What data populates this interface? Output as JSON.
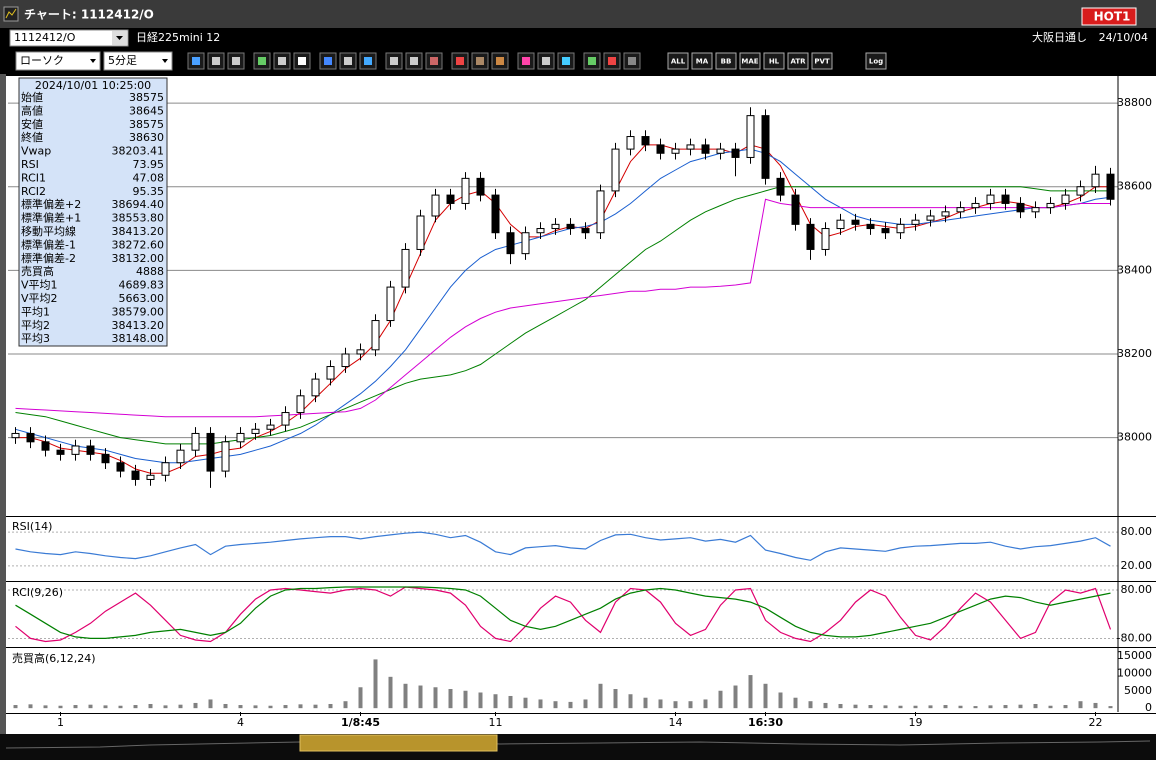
{
  "window": {
    "title": "チャート: 1112412/O",
    "hot": "HOT1"
  },
  "header": {
    "symbol": "1112412/O",
    "name": "日経225mini 12",
    "market": "大阪日通し",
    "date": "24/10/04"
  },
  "toolbar": {
    "chart_type": "ローソク",
    "interval": "5分足",
    "buttons": [
      "ALL",
      "MA",
      "BB",
      "MAE",
      "HL",
      "ATR",
      "PVT",
      "Log"
    ]
  },
  "info_panel": {
    "datetime": "2024/10/01  10:25:00",
    "rows": [
      {
        "label": "始値",
        "value": "38575",
        "color": "#000000"
      },
      {
        "label": "高値",
        "value": "38645",
        "color": "#000000"
      },
      {
        "label": "安値",
        "value": "38575",
        "color": "#000000"
      },
      {
        "label": "終値",
        "value": "38630",
        "color": "#000000"
      },
      {
        "label": "Vwap",
        "value": "38203.41",
        "color": "#d400d4"
      },
      {
        "label": "RSI",
        "value": "73.95",
        "color": "#5a7fd0"
      },
      {
        "label": "RCI1",
        "value": "47.08",
        "color": "#d4006a"
      },
      {
        "label": "RCI2",
        "value": "95.35",
        "color": "#008000"
      },
      {
        "label": "標準偏差+2",
        "value": "38694.40",
        "color": "#909090"
      },
      {
        "label": "標準偏差+1",
        "value": "38553.80",
        "color": "#909090"
      },
      {
        "label": "移動平均線",
        "value": "38413.20",
        "color": "#0020a0"
      },
      {
        "label": "標準偏差-1",
        "value": "38272.60",
        "color": "#909090"
      },
      {
        "label": "標準偏差-2",
        "value": "38132.00",
        "color": "#909090"
      },
      {
        "label": "売買高",
        "value": "4888",
        "color": "#000000"
      },
      {
        "label": "V平均1",
        "value": "4689.83",
        "color": "#d00000"
      },
      {
        "label": "V平均2",
        "value": "5663.00",
        "color": "#7050c0"
      },
      {
        "label": "平均1",
        "value": "38579.00",
        "color": "#d00000"
      },
      {
        "label": "平均2",
        "value": "38413.20",
        "color": "#0050d0"
      },
      {
        "label": "平均3",
        "value": "38148.00",
        "color": "#006000"
      }
    ]
  },
  "chart_data": [
    {
      "type": "candlestick",
      "categories": [
        null,
        null,
        null,
        "1",
        null,
        null,
        null,
        null,
        null,
        null,
        null,
        null,
        null,
        null,
        null,
        "4",
        null,
        null,
        null,
        null,
        null,
        null,
        null,
        "1/8:45",
        null,
        null,
        null,
        null,
        null,
        null,
        null,
        null,
        "11",
        null,
        null,
        null,
        null,
        null,
        null,
        null,
        null,
        null,
        null,
        null,
        "14",
        null,
        null,
        null,
        null,
        null,
        "16:30",
        null,
        null,
        null,
        null,
        null,
        null,
        null,
        null,
        null,
        "19",
        null,
        null,
        null,
        null,
        null,
        null,
        null,
        null,
        null,
        null,
        null,
        "22",
        null
      ],
      "open": [
        38000,
        38010,
        37990,
        37970,
        37960,
        37980,
        37960,
        37940,
        37920,
        37900,
        37910,
        37940,
        37970,
        38010,
        37920,
        37990,
        38010,
        38020,
        38030,
        38060,
        38100,
        38140,
        38170,
        38200,
        38210,
        38280,
        38360,
        38450,
        38530,
        38580,
        38560,
        38620,
        38580,
        38490,
        38440,
        38490,
        38500,
        38510,
        38500,
        38490,
        38590,
        38690,
        38720,
        38700,
        38680,
        38690,
        38700,
        38680,
        38690,
        38670,
        38770,
        38620,
        38580,
        38510,
        38450,
        38500,
        38520,
        38510,
        38500,
        38490,
        38510,
        38520,
        38530,
        38540,
        38550,
        38560,
        38580,
        38560,
        38540,
        38550,
        38560,
        38580,
        38600,
        38630
      ],
      "high": [
        38025,
        38025,
        38005,
        37985,
        37995,
        37995,
        37975,
        37955,
        37935,
        37925,
        37955,
        37985,
        38025,
        38025,
        38005,
        38025,
        38035,
        38045,
        38075,
        38115,
        38155,
        38185,
        38215,
        38225,
        38295,
        38375,
        38465,
        38545,
        38595,
        38595,
        38635,
        38635,
        38595,
        38505,
        38505,
        38515,
        38525,
        38525,
        38515,
        38605,
        38705,
        38735,
        38735,
        38715,
        38705,
        38715,
        38715,
        38705,
        38705,
        38790,
        38785,
        38635,
        38595,
        38525,
        38515,
        38535,
        38535,
        38525,
        38515,
        38525,
        38535,
        38545,
        38555,
        38565,
        38575,
        38595,
        38595,
        38575,
        38565,
        38575,
        38595,
        38615,
        38650,
        38645
      ],
      "low": [
        37985,
        37975,
        37955,
        37945,
        37945,
        37945,
        37925,
        37905,
        37885,
        37885,
        37895,
        37925,
        37955,
        37880,
        37905,
        37975,
        37995,
        38005,
        38015,
        38045,
        38085,
        38125,
        38155,
        38185,
        38195,
        38265,
        38345,
        38435,
        38515,
        38545,
        38545,
        38565,
        38475,
        38415,
        38425,
        38475,
        38485,
        38485,
        38475,
        38475,
        38575,
        38675,
        38685,
        38665,
        38665,
        38675,
        38665,
        38665,
        38625,
        38655,
        38605,
        38565,
        38495,
        38425,
        38435,
        38485,
        38495,
        38485,
        38475,
        38475,
        38495,
        38505,
        38515,
        38525,
        38535,
        38545,
        38545,
        38525,
        38525,
        38535,
        38545,
        38565,
        38585,
        38555
      ],
      "close": [
        38010,
        37990,
        37970,
        37960,
        37980,
        37960,
        37940,
        37920,
        37900,
        37910,
        37940,
        37970,
        38010,
        37920,
        37990,
        38010,
        38020,
        38030,
        38060,
        38100,
        38140,
        38170,
        38200,
        38210,
        38280,
        38360,
        38450,
        38530,
        38580,
        38560,
        38620,
        38580,
        38490,
        38440,
        38490,
        38500,
        38510,
        38500,
        38490,
        38590,
        38690,
        38720,
        38700,
        38680,
        38690,
        38700,
        38680,
        38690,
        38670,
        38770,
        38620,
        38580,
        38510,
        38450,
        38500,
        38520,
        38510,
        38500,
        38490,
        38510,
        38520,
        38530,
        38540,
        38550,
        38560,
        38580,
        38560,
        38540,
        38550,
        38560,
        38580,
        38600,
        38630,
        38570
      ],
      "lines": [
        {
          "color": "#d40000",
          "values": [
            38000,
            38000,
            37990,
            37975,
            37970,
            37965,
            37960,
            37945,
            37925,
            37915,
            37915,
            37930,
            37955,
            37960,
            37970,
            37975,
            38000,
            38015,
            38035,
            38060,
            38095,
            38130,
            38165,
            38190,
            38225,
            38280,
            38360,
            38440,
            38520,
            38560,
            38580,
            38590,
            38560,
            38510,
            38480,
            38480,
            38495,
            38505,
            38500,
            38520,
            38590,
            38660,
            38700,
            38700,
            38690,
            38690,
            38690,
            38690,
            38680,
            38700,
            38690,
            38650,
            38580,
            38510,
            38480,
            38490,
            38505,
            38510,
            38505,
            38500,
            38505,
            38515,
            38525,
            38540,
            38550,
            38560,
            38565,
            38560,
            38550,
            38550,
            38560,
            38575,
            38600,
            38600
          ]
        },
        {
          "color": "#1a5fd0",
          "values": [
            38020,
            38010,
            38000,
            37990,
            37980,
            37975,
            37970,
            37960,
            37950,
            37945,
            37940,
            37940,
            37945,
            37950,
            37955,
            37960,
            37970,
            37980,
            37995,
            38010,
            38030,
            38055,
            38080,
            38105,
            38135,
            38170,
            38210,
            38260,
            38310,
            38360,
            38400,
            38430,
            38450,
            38460,
            38470,
            38480,
            38490,
            38500,
            38505,
            38515,
            38535,
            38560,
            38590,
            38620,
            38640,
            38660,
            38670,
            38680,
            38685,
            38690,
            38680,
            38660,
            38630,
            38600,
            38570,
            38550,
            38530,
            38520,
            38515,
            38510,
            38510,
            38515,
            38520,
            38525,
            38530,
            38535,
            38540,
            38545,
            38550,
            38550,
            38555,
            38560,
            38570,
            38575
          ]
        },
        {
          "color": "#008000",
          "values": [
            38060,
            38055,
            38050,
            38040,
            38030,
            38020,
            38010,
            38000,
            37995,
            37990,
            37985,
            37985,
            37985,
            37985,
            37990,
            37995,
            38000,
            38005,
            38015,
            38025,
            38040,
            38055,
            38070,
            38085,
            38100,
            38115,
            38130,
            38140,
            38145,
            38150,
            38160,
            38175,
            38200,
            38225,
            38250,
            38270,
            38290,
            38310,
            38330,
            38360,
            38390,
            38420,
            38450,
            38470,
            38495,
            38520,
            38540,
            38555,
            38570,
            38580,
            38590,
            38600,
            38600,
            38600,
            38600,
            38600,
            38600,
            38600,
            38600,
            38600,
            38600,
            38600,
            38600,
            38600,
            38600,
            38600,
            38600,
            38600,
            38595,
            38590,
            38590,
            38590,
            38590,
            38590
          ]
        },
        {
          "color": "#d400d4",
          "values": [
            38070,
            38068,
            38066,
            38064,
            38062,
            38060,
            38058,
            38056,
            38054,
            38052,
            38050,
            38050,
            38050,
            38050,
            38050,
            38050,
            38050,
            38052,
            38054,
            38056,
            38058,
            38060,
            38062,
            38070,
            38090,
            38120,
            38150,
            38180,
            38210,
            38240,
            38265,
            38285,
            38300,
            38310,
            38315,
            38320,
            38325,
            38330,
            38335,
            38340,
            38345,
            38350,
            38350,
            38355,
            38355,
            38360,
            38360,
            38362,
            38365,
            38370,
            38570,
            38560,
            38555,
            38550,
            38550,
            38550,
            38550,
            38550,
            38550,
            38550,
            38550,
            38550,
            38550,
            38550,
            38550,
            38550,
            38550,
            38550,
            38550,
            38550,
            38555,
            38560,
            38560,
            38560
          ]
        }
      ],
      "ylim": [
        37815,
        38860
      ],
      "yticks": [
        38000,
        38200,
        38400,
        38600,
        38800
      ],
      "grid": true
    },
    {
      "type": "line",
      "title": "RSI(14)",
      "series": [
        {
          "color": "#3a7bd5",
          "values": [
            50,
            45,
            42,
            40,
            45,
            42,
            38,
            35,
            33,
            38,
            45,
            52,
            58,
            40,
            55,
            58,
            60,
            62,
            65,
            68,
            70,
            72,
            72,
            68,
            72,
            75,
            78,
            80,
            76,
            70,
            74,
            62,
            45,
            40,
            52,
            54,
            56,
            52,
            50,
            65,
            75,
            76,
            70,
            66,
            68,
            70,
            64,
            67,
            62,
            74,
            48,
            42,
            35,
            30,
            45,
            52,
            50,
            48,
            46,
            52,
            55,
            56,
            58,
            60,
            60,
            62,
            55,
            50,
            54,
            56,
            60,
            64,
            70,
            55
          ]
        }
      ],
      "ylim": [
        -5,
        105
      ],
      "yticks": [
        {
          "value": 80,
          "label": "80.00"
        },
        {
          "value": 20,
          "label": "20.00"
        }
      ],
      "grid": true
    },
    {
      "type": "line",
      "title": "RCI(9,26)",
      "series": [
        {
          "color": "#e0006e",
          "values": [
            -40,
            -80,
            -90,
            -85,
            -60,
            -30,
            10,
            40,
            70,
            30,
            -20,
            -70,
            -85,
            -90,
            -60,
            0,
            50,
            80,
            85,
            80,
            75,
            70,
            80,
            85,
            80,
            60,
            90,
            85,
            80,
            70,
            30,
            -40,
            -80,
            -90,
            -40,
            20,
            60,
            40,
            -20,
            -60,
            40,
            85,
            80,
            40,
            -30,
            -70,
            -50,
            30,
            80,
            85,
            -20,
            -60,
            -80,
            -90,
            -60,
            -20,
            40,
            80,
            60,
            -10,
            -70,
            -85,
            -40,
            20,
            70,
            40,
            -20,
            -80,
            -60,
            40,
            80,
            70,
            85,
            -50
          ]
        },
        {
          "color": "#008000",
          "values": [
            30,
            0,
            -30,
            -60,
            -75,
            -80,
            -80,
            -75,
            -70,
            -60,
            -55,
            -50,
            -60,
            -70,
            -60,
            -30,
            20,
            60,
            80,
            85,
            85,
            88,
            90,
            90,
            90,
            90,
            90,
            90,
            88,
            85,
            80,
            60,
            20,
            -20,
            -40,
            -50,
            -40,
            -20,
            0,
            20,
            50,
            70,
            80,
            85,
            80,
            70,
            60,
            55,
            50,
            40,
            20,
            -10,
            -40,
            -60,
            -70,
            -75,
            -75,
            -70,
            -60,
            -50,
            -40,
            -30,
            -10,
            10,
            30,
            50,
            60,
            55,
            40,
            30,
            40,
            50,
            60,
            70
          ]
        }
      ],
      "ylim": [
        -105,
        100
      ],
      "yticks": [
        {
          "value": 80,
          "label": "80.00"
        },
        {
          "value": -80,
          "label": "-80.00"
        }
      ],
      "grid": true
    },
    {
      "type": "bar",
      "title": "売買高(6,12,24)",
      "color": "#808080",
      "values": [
        900,
        1100,
        800,
        700,
        900,
        1000,
        800,
        700,
        900,
        1200,
        800,
        1000,
        1500,
        2500,
        1200,
        900,
        800,
        700,
        900,
        1100,
        1000,
        1200,
        2000,
        6000,
        14000,
        9000,
        7000,
        6500,
        6000,
        5500,
        5000,
        4500,
        4000,
        3500,
        3000,
        2500,
        2000,
        1800,
        2500,
        7000,
        5500,
        4000,
        3000,
        2500,
        2000,
        2000,
        2500,
        5000,
        6500,
        9500,
        7000,
        4500,
        3000,
        2000,
        1500,
        1200,
        1000,
        900,
        800,
        700,
        700,
        800,
        900,
        700,
        600,
        800,
        900,
        1000,
        1200,
        700,
        900,
        2000,
        1500,
        600
      ],
      "ylim": [
        -1100,
        16700
      ],
      "yticks": [
        0,
        5000,
        10000,
        15000
      ],
      "grid": false
    }
  ]
}
